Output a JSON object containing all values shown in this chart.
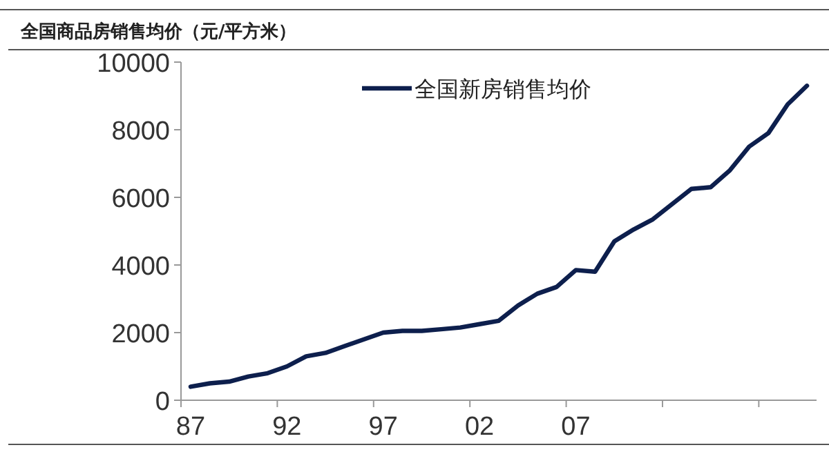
{
  "chart_data": {
    "type": "line",
    "title": "全国商品房销售均价（元/平方米）",
    "categories": [
      "87",
      null,
      null,
      null,
      null,
      "92",
      null,
      null,
      null,
      null,
      "97",
      null,
      null,
      null,
      null,
      "02",
      null,
      null,
      null,
      null,
      "07",
      null,
      null,
      null,
      null,
      null,
      null,
      null,
      null,
      null,
      null,
      null,
      null
    ],
    "series": [
      {
        "name": "全国新房销售均价",
        "color": "#0d1f4d",
        "values": [
          400,
          500,
          550,
          700,
          800,
          1000,
          1300,
          1400,
          1600,
          1800,
          2000,
          2050,
          2050,
          2100,
          2150,
          2250,
          2350,
          2800,
          3150,
          3350,
          3850,
          3800,
          4700,
          5050,
          5350,
          5800,
          6250,
          6300,
          6800,
          7500,
          7900,
          8750,
          9300
        ]
      }
    ],
    "ylim": [
      0,
      10000
    ],
    "yticks": [
      0,
      2000,
      4000,
      6000,
      8000,
      10000
    ],
    "legend": "top",
    "grid": false,
    "marker": "none",
    "line_style": "solid"
  }
}
